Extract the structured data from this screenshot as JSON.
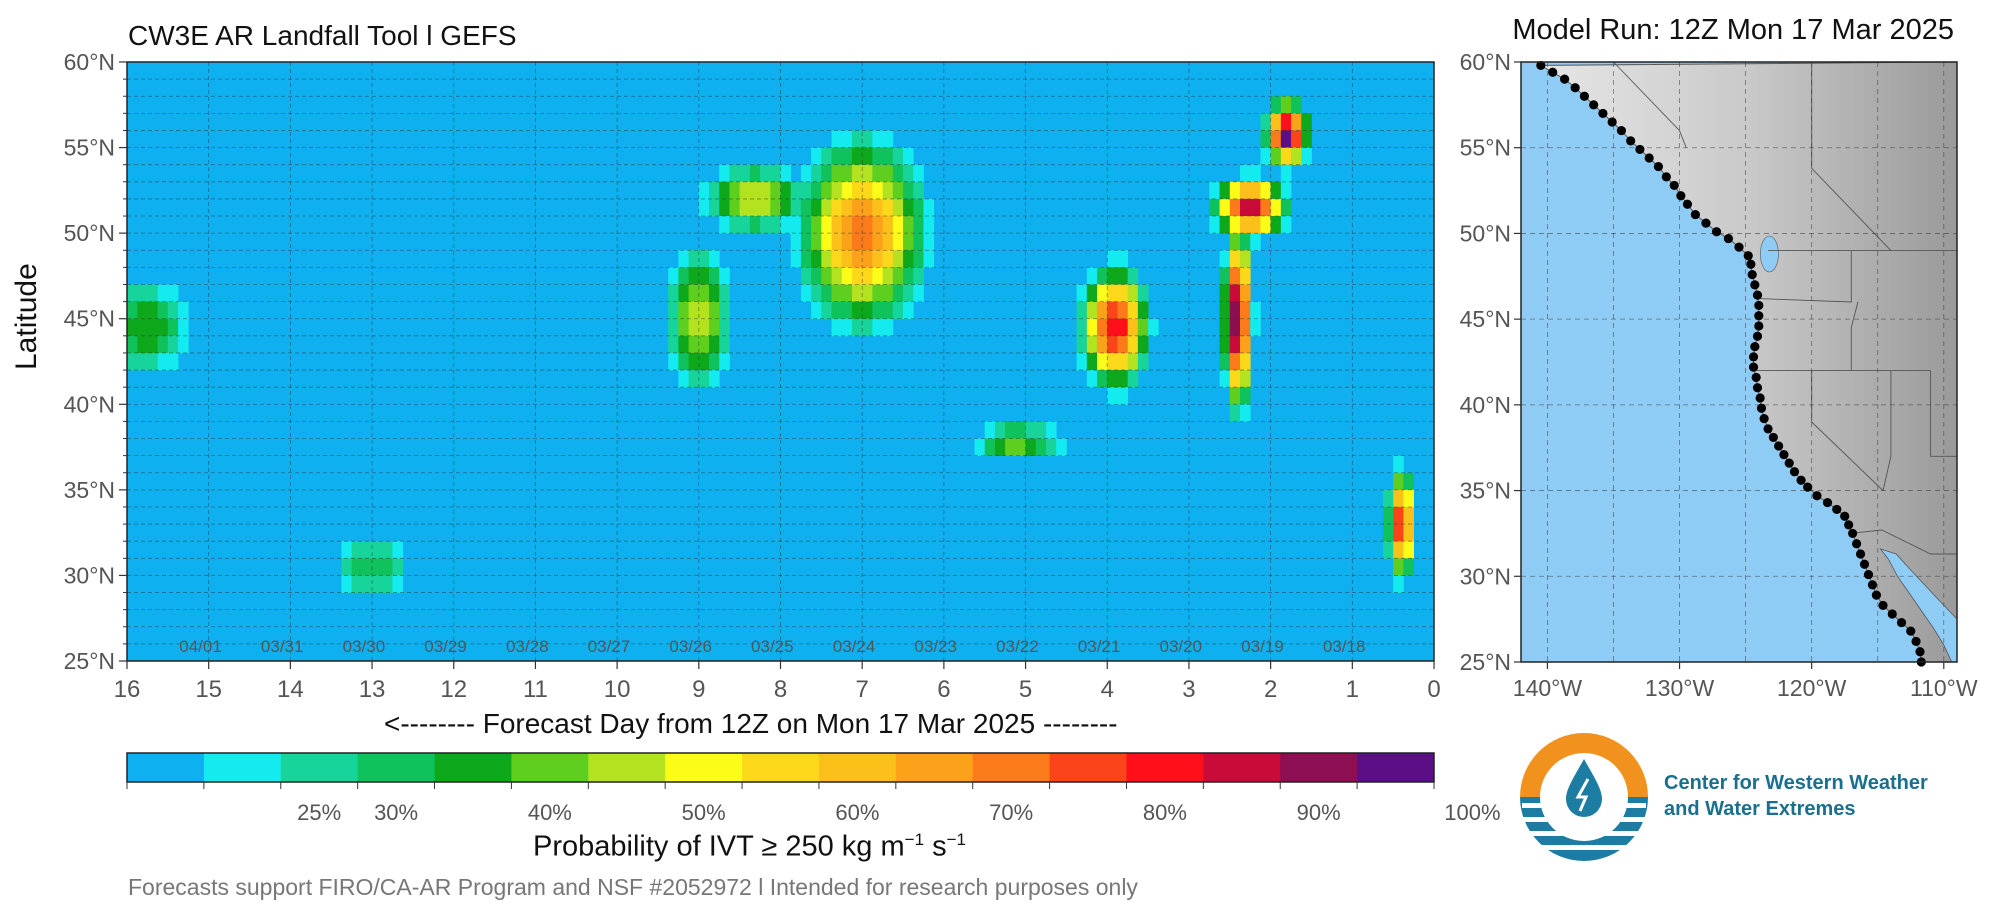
{
  "header": {
    "title": "CW3E AR Landfall Tool l GEFS",
    "model_run": "Model Run: 12Z Mon 17 Mar 2025"
  },
  "chart_data": [
    {
      "type": "heatmap",
      "title": "CW3E AR Landfall Tool l GEFS",
      "xlabel": "<-------- Forecast Day from 12Z on Mon 17 Mar 2025 --------",
      "ylabel": "Latitude",
      "x_ticks": [
        16,
        15,
        14,
        13,
        12,
        11,
        10,
        9,
        8,
        7,
        6,
        5,
        4,
        3,
        2,
        1,
        0
      ],
      "x_reversed": true,
      "xlim": [
        16,
        0
      ],
      "y_ticks": [
        "25°N",
        "30°N",
        "35°N",
        "40°N",
        "45°N",
        "50°N",
        "55°N",
        "60°N"
      ],
      "ylim": [
        25,
        60
      ],
      "date_labels": [
        {
          "day": 15.1,
          "label": "04/01"
        },
        {
          "day": 14.1,
          "label": "03/31"
        },
        {
          "day": 13.1,
          "label": "03/30"
        },
        {
          "day": 12.1,
          "label": "03/29"
        },
        {
          "day": 11.1,
          "label": "03/28"
        },
        {
          "day": 10.1,
          "label": "03/27"
        },
        {
          "day": 9.1,
          "label": "03/26"
        },
        {
          "day": 8.1,
          "label": "03/25"
        },
        {
          "day": 7.1,
          "label": "03/24"
        },
        {
          "day": 6.1,
          "label": "03/23"
        },
        {
          "day": 5.1,
          "label": "03/22"
        },
        {
          "day": 4.1,
          "label": "03/21"
        },
        {
          "day": 3.1,
          "label": "03/20"
        },
        {
          "day": 2.1,
          "label": "03/19"
        },
        {
          "day": 1.1,
          "label": "03/18"
        }
      ],
      "background_color": "#0fb0f0",
      "grid": true,
      "features": [
        {
          "day": 7.0,
          "lat": 50.0,
          "peak": 0.72,
          "sd": 0.55,
          "sl": 3.8
        },
        {
          "day": 8.3,
          "lat": 52.0,
          "peak": 0.5,
          "sd": 0.5,
          "sl": 1.5
        },
        {
          "day": 9.0,
          "lat": 45.0,
          "peak": 0.5,
          "sd": 0.3,
          "sl": 3.2
        },
        {
          "day": 3.9,
          "lat": 44.5,
          "peak": 0.85,
          "sd": 0.28,
          "sl": 2.4
        },
        {
          "day": 5.1,
          "lat": 37.8,
          "peak": 0.45,
          "sd": 0.45,
          "sl": 0.8
        },
        {
          "day": 2.4,
          "lat": 45.0,
          "peak": 0.98,
          "sd": 0.12,
          "sl": 3.5
        },
        {
          "day": 2.25,
          "lat": 51.5,
          "peak": 0.9,
          "sd": 0.3,
          "sl": 1.2
        },
        {
          "day": 1.8,
          "lat": 55.8,
          "peak": 0.98,
          "sd": 0.18,
          "sl": 1.3
        },
        {
          "day": 15.8,
          "lat": 44.5,
          "peak": 0.4,
          "sd": 0.5,
          "sl": 2.2
        },
        {
          "day": 13.0,
          "lat": 30.5,
          "peak": 0.35,
          "sd": 0.4,
          "sl": 1.5
        },
        {
          "day": 0.4,
          "lat": 33.0,
          "peak": 0.85,
          "sd": 0.12,
          "sl": 2.2
        }
      ]
    },
    {
      "type": "map",
      "lon_ticks": [
        "140°W",
        "130°W",
        "120°W",
        "110°W"
      ],
      "lat_ticks": [
        "25°N",
        "30°N",
        "35°N",
        "40°N",
        "45°N",
        "50°N",
        "55°N",
        "60°N"
      ],
      "lon_range": [
        -142,
        -109
      ],
      "lat_range": [
        25,
        60
      ],
      "coast_points_lonlat": [
        [
          -140.5,
          59.8
        ],
        [
          -139.6,
          59.4
        ],
        [
          -138.7,
          59.0
        ],
        [
          -137.9,
          58.5
        ],
        [
          -137.2,
          58.0
        ],
        [
          -136.5,
          57.5
        ],
        [
          -135.8,
          57.0
        ],
        [
          -135.1,
          56.5
        ],
        [
          -134.4,
          56.0
        ],
        [
          -133.7,
          55.4
        ],
        [
          -133.0,
          54.9
        ],
        [
          -132.3,
          54.4
        ],
        [
          -131.6,
          53.9
        ],
        [
          -131.0,
          53.3
        ],
        [
          -130.4,
          52.8
        ],
        [
          -129.9,
          52.2
        ],
        [
          -129.4,
          51.7
        ],
        [
          -128.8,
          51.1
        ],
        [
          -128.0,
          50.6
        ],
        [
          -127.2,
          50.1
        ],
        [
          -126.3,
          49.7
        ],
        [
          -125.5,
          49.2
        ],
        [
          -124.8,
          48.7
        ],
        [
          -124.6,
          48.2
        ],
        [
          -124.5,
          47.6
        ],
        [
          -124.3,
          47.0
        ],
        [
          -124.1,
          46.4
        ],
        [
          -124.0,
          45.8
        ],
        [
          -124.0,
          45.2
        ],
        [
          -124.0,
          44.6
        ],
        [
          -124.1,
          44.0
        ],
        [
          -124.3,
          43.4
        ],
        [
          -124.4,
          42.8
        ],
        [
          -124.4,
          42.2
        ],
        [
          -124.2,
          41.6
        ],
        [
          -124.1,
          41.0
        ],
        [
          -123.9,
          40.4
        ],
        [
          -123.8,
          39.8
        ],
        [
          -123.6,
          39.2
        ],
        [
          -123.3,
          38.6
        ],
        [
          -122.9,
          38.1
        ],
        [
          -122.5,
          37.6
        ],
        [
          -122.1,
          37.1
        ],
        [
          -121.7,
          36.6
        ],
        [
          -121.3,
          36.1
        ],
        [
          -120.8,
          35.6
        ],
        [
          -120.3,
          35.2
        ],
        [
          -119.6,
          34.7
        ],
        [
          -118.8,
          34.3
        ],
        [
          -118.1,
          33.9
        ],
        [
          -117.5,
          33.5
        ],
        [
          -117.2,
          33.0
        ],
        [
          -116.9,
          32.5
        ],
        [
          -116.6,
          31.9
        ],
        [
          -116.3,
          31.3
        ],
        [
          -116.0,
          30.7
        ],
        [
          -115.7,
          30.1
        ],
        [
          -115.4,
          29.5
        ],
        [
          -115.1,
          28.9
        ],
        [
          -114.6,
          28.3
        ],
        [
          -113.9,
          27.8
        ],
        [
          -113.2,
          27.3
        ],
        [
          -112.5,
          26.8
        ],
        [
          -112.1,
          26.2
        ],
        [
          -111.8,
          25.6
        ],
        [
          -111.7,
          25.0
        ]
      ]
    }
  ],
  "xlabel_text": "<-------- Forecast Day from 12Z on Mon 17 Mar 2025 --------",
  "ylabel_text": "Latitude",
  "colorbar": {
    "title_prefix": "Probability of IVT",
    "title_ge": "≥",
    "title_units": "250 kg m",
    "title_exp1": "−1",
    "title_s": " s",
    "title_exp2": "−1",
    "colors": [
      "#0fb0f0",
      "#13ebee",
      "#16d49a",
      "#10c25b",
      "#0ea81d",
      "#5fcf1f",
      "#b3e320",
      "#fbfd18",
      "#fbd81a",
      "#fbc01a",
      "#fba21a",
      "#fb7a1a",
      "#fc441a",
      "#ff0f1a",
      "#c90b3a",
      "#8c0f53",
      "#5b0e86"
    ],
    "tick_labels": [
      {
        "value": 0.25,
        "label": "25%"
      },
      {
        "value": 0.3,
        "label": "30%"
      },
      {
        "value": 0.4,
        "label": "40%"
      },
      {
        "value": 0.5,
        "label": "50%"
      },
      {
        "value": 0.6,
        "label": "60%"
      },
      {
        "value": 0.7,
        "label": "70%"
      },
      {
        "value": 0.8,
        "label": "80%"
      },
      {
        "value": 0.9,
        "label": "90%"
      },
      {
        "value": 1.0,
        "label": "100%"
      }
    ]
  },
  "footer": "Forecasts support FIRO/CA-AR Program and NSF #2052972 l Intended for research purposes only",
  "logo": {
    "line1": "Center for Western Weather",
    "line2": "and Water Extremes",
    "colors": {
      "orange": "#f2921e",
      "blue": "#1d7ca1"
    }
  }
}
